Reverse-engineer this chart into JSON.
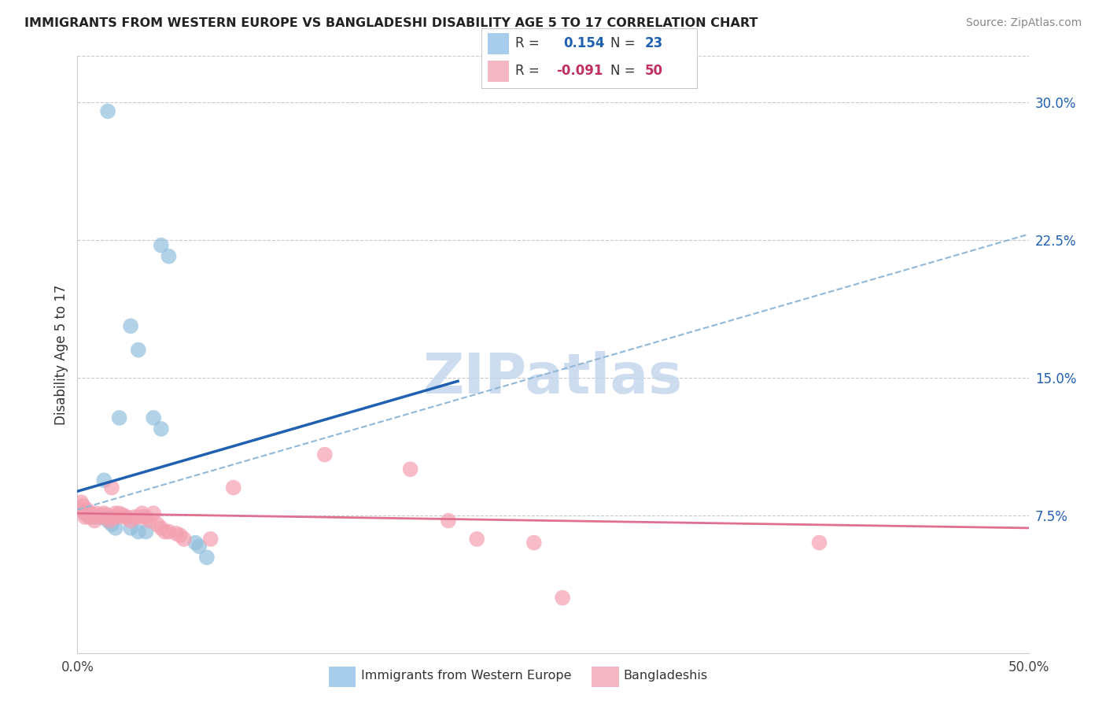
{
  "title": "IMMIGRANTS FROM WESTERN EUROPE VS BANGLADESHI DISABILITY AGE 5 TO 17 CORRELATION CHART",
  "source": "Source: ZipAtlas.com",
  "ylabel": "Disability Age 5 to 17",
  "xmin": 0.0,
  "xmax": 0.5,
  "ymin": 0.0,
  "ymax": 0.325,
  "xticks": [
    0.0,
    0.5
  ],
  "xticklabels": [
    "0.0%",
    "50.0%"
  ],
  "yticks_right": [
    0.075,
    0.15,
    0.225,
    0.3
  ],
  "yticklabels_right": [
    "7.5%",
    "15.0%",
    "22.5%",
    "30.0%"
  ],
  "grid_color": "#c8c8d0",
  "background_color": "#ffffff",
  "watermark_text": "ZIPatlas",
  "watermark_color": "#c5d8ed",
  "legend_val1": "0.154",
  "legend_nval1": "23",
  "legend_val2": "-0.091",
  "legend_nval2": "50",
  "blue_color": "#92bfdd",
  "pink_color": "#f4a0b0",
  "blue_line_color": "#2060b0",
  "pink_line_color": "#e07090",
  "dashed_line_color": "#90b8d8",
  "legend_blue_box": "#a8ccec",
  "legend_pink_box": "#f4b8c4",
  "blue_line_x0": 0.0,
  "blue_line_y0": 0.088,
  "blue_line_x1": 0.2,
  "blue_line_y1": 0.148,
  "pink_line_x0": 0.0,
  "pink_line_x1": 0.5,
  "pink_line_y0": 0.076,
  "pink_line_y1": 0.068,
  "dash_line_x0": 0.0,
  "dash_line_y0": 0.078,
  "dash_line_x1": 0.5,
  "dash_line_y1": 0.228,
  "blue_scatter": [
    [
      0.016,
      0.295
    ],
    [
      0.044,
      0.222
    ],
    [
      0.048,
      0.216
    ],
    [
      0.028,
      0.178
    ],
    [
      0.032,
      0.165
    ],
    [
      0.022,
      0.128
    ],
    [
      0.04,
      0.128
    ],
    [
      0.044,
      0.122
    ],
    [
      0.014,
      0.094
    ],
    [
      0.004,
      0.076
    ],
    [
      0.006,
      0.075
    ],
    [
      0.008,
      0.074
    ],
    [
      0.01,
      0.074
    ],
    [
      0.012,
      0.074
    ],
    [
      0.016,
      0.072
    ],
    [
      0.018,
      0.07
    ],
    [
      0.02,
      0.068
    ],
    [
      0.028,
      0.068
    ],
    [
      0.032,
      0.066
    ],
    [
      0.036,
      0.066
    ],
    [
      0.062,
      0.06
    ],
    [
      0.064,
      0.058
    ],
    [
      0.068,
      0.052
    ]
  ],
  "pink_scatter": [
    [
      0.002,
      0.082
    ],
    [
      0.002,
      0.078
    ],
    [
      0.003,
      0.08
    ],
    [
      0.004,
      0.076
    ],
    [
      0.004,
      0.074
    ],
    [
      0.005,
      0.078
    ],
    [
      0.006,
      0.076
    ],
    [
      0.006,
      0.074
    ],
    [
      0.007,
      0.076
    ],
    [
      0.008,
      0.074
    ],
    [
      0.009,
      0.072
    ],
    [
      0.01,
      0.076
    ],
    [
      0.012,
      0.075
    ],
    [
      0.013,
      0.074
    ],
    [
      0.014,
      0.076
    ],
    [
      0.015,
      0.075
    ],
    [
      0.016,
      0.074
    ],
    [
      0.017,
      0.072
    ],
    [
      0.018,
      0.09
    ],
    [
      0.019,
      0.074
    ],
    [
      0.02,
      0.076
    ],
    [
      0.021,
      0.074
    ],
    [
      0.022,
      0.076
    ],
    [
      0.024,
      0.075
    ],
    [
      0.025,
      0.074
    ],
    [
      0.026,
      0.074
    ],
    [
      0.028,
      0.072
    ],
    [
      0.03,
      0.074
    ],
    [
      0.032,
      0.074
    ],
    [
      0.034,
      0.076
    ],
    [
      0.035,
      0.074
    ],
    [
      0.036,
      0.074
    ],
    [
      0.038,
      0.072
    ],
    [
      0.04,
      0.076
    ],
    [
      0.042,
      0.07
    ],
    [
      0.044,
      0.068
    ],
    [
      0.046,
      0.066
    ],
    [
      0.048,
      0.066
    ],
    [
      0.052,
      0.065
    ],
    [
      0.054,
      0.064
    ],
    [
      0.056,
      0.062
    ],
    [
      0.07,
      0.062
    ],
    [
      0.082,
      0.09
    ],
    [
      0.13,
      0.108
    ],
    [
      0.175,
      0.1
    ],
    [
      0.195,
      0.072
    ],
    [
      0.21,
      0.062
    ],
    [
      0.24,
      0.06
    ],
    [
      0.39,
      0.06
    ],
    [
      0.255,
      0.03
    ]
  ]
}
